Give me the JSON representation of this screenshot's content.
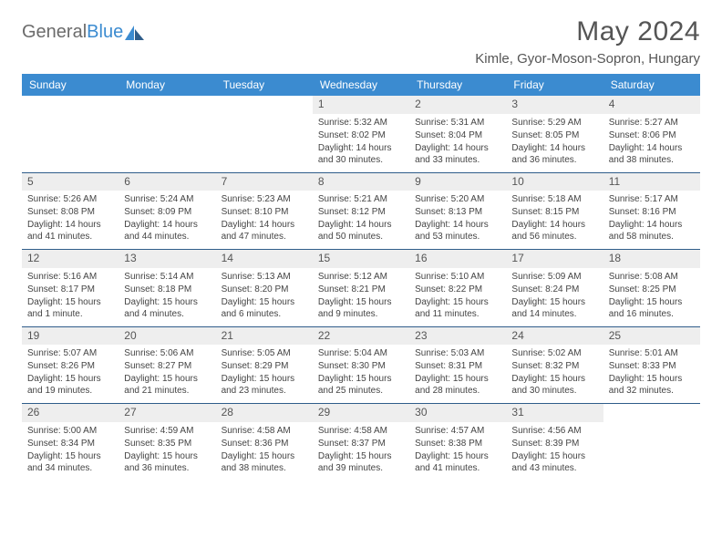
{
  "brand": {
    "part1": "General",
    "part2": "Blue"
  },
  "title": "May 2024",
  "location": "Kimle, Gyor-Moson-Sopron, Hungary",
  "style": {
    "header_bg": "#3b8bd0",
    "header_text": "#ffffff",
    "daynum_bg": "#eeeeee",
    "week_border": "#2f5d8a",
    "text_color": "#444444",
    "title_color": "#555555"
  },
  "daysOfWeek": [
    "Sunday",
    "Monday",
    "Tuesday",
    "Wednesday",
    "Thursday",
    "Friday",
    "Saturday"
  ],
  "weeks": [
    [
      {
        "n": "",
        "sr": "",
        "ss": "",
        "dl": ""
      },
      {
        "n": "",
        "sr": "",
        "ss": "",
        "dl": ""
      },
      {
        "n": "",
        "sr": "",
        "ss": "",
        "dl": ""
      },
      {
        "n": "1",
        "sr": "5:32 AM",
        "ss": "8:02 PM",
        "dl": "14 hours and 30 minutes."
      },
      {
        "n": "2",
        "sr": "5:31 AM",
        "ss": "8:04 PM",
        "dl": "14 hours and 33 minutes."
      },
      {
        "n": "3",
        "sr": "5:29 AM",
        "ss": "8:05 PM",
        "dl": "14 hours and 36 minutes."
      },
      {
        "n": "4",
        "sr": "5:27 AM",
        "ss": "8:06 PM",
        "dl": "14 hours and 38 minutes."
      }
    ],
    [
      {
        "n": "5",
        "sr": "5:26 AM",
        "ss": "8:08 PM",
        "dl": "14 hours and 41 minutes."
      },
      {
        "n": "6",
        "sr": "5:24 AM",
        "ss": "8:09 PM",
        "dl": "14 hours and 44 minutes."
      },
      {
        "n": "7",
        "sr": "5:23 AM",
        "ss": "8:10 PM",
        "dl": "14 hours and 47 minutes."
      },
      {
        "n": "8",
        "sr": "5:21 AM",
        "ss": "8:12 PM",
        "dl": "14 hours and 50 minutes."
      },
      {
        "n": "9",
        "sr": "5:20 AM",
        "ss": "8:13 PM",
        "dl": "14 hours and 53 minutes."
      },
      {
        "n": "10",
        "sr": "5:18 AM",
        "ss": "8:15 PM",
        "dl": "14 hours and 56 minutes."
      },
      {
        "n": "11",
        "sr": "5:17 AM",
        "ss": "8:16 PM",
        "dl": "14 hours and 58 minutes."
      }
    ],
    [
      {
        "n": "12",
        "sr": "5:16 AM",
        "ss": "8:17 PM",
        "dl": "15 hours and 1 minute."
      },
      {
        "n": "13",
        "sr": "5:14 AM",
        "ss": "8:18 PM",
        "dl": "15 hours and 4 minutes."
      },
      {
        "n": "14",
        "sr": "5:13 AM",
        "ss": "8:20 PM",
        "dl": "15 hours and 6 minutes."
      },
      {
        "n": "15",
        "sr": "5:12 AM",
        "ss": "8:21 PM",
        "dl": "15 hours and 9 minutes."
      },
      {
        "n": "16",
        "sr": "5:10 AM",
        "ss": "8:22 PM",
        "dl": "15 hours and 11 minutes."
      },
      {
        "n": "17",
        "sr": "5:09 AM",
        "ss": "8:24 PM",
        "dl": "15 hours and 14 minutes."
      },
      {
        "n": "18",
        "sr": "5:08 AM",
        "ss": "8:25 PM",
        "dl": "15 hours and 16 minutes."
      }
    ],
    [
      {
        "n": "19",
        "sr": "5:07 AM",
        "ss": "8:26 PM",
        "dl": "15 hours and 19 minutes."
      },
      {
        "n": "20",
        "sr": "5:06 AM",
        "ss": "8:27 PM",
        "dl": "15 hours and 21 minutes."
      },
      {
        "n": "21",
        "sr": "5:05 AM",
        "ss": "8:29 PM",
        "dl": "15 hours and 23 minutes."
      },
      {
        "n": "22",
        "sr": "5:04 AM",
        "ss": "8:30 PM",
        "dl": "15 hours and 25 minutes."
      },
      {
        "n": "23",
        "sr": "5:03 AM",
        "ss": "8:31 PM",
        "dl": "15 hours and 28 minutes."
      },
      {
        "n": "24",
        "sr": "5:02 AM",
        "ss": "8:32 PM",
        "dl": "15 hours and 30 minutes."
      },
      {
        "n": "25",
        "sr": "5:01 AM",
        "ss": "8:33 PM",
        "dl": "15 hours and 32 minutes."
      }
    ],
    [
      {
        "n": "26",
        "sr": "5:00 AM",
        "ss": "8:34 PM",
        "dl": "15 hours and 34 minutes."
      },
      {
        "n": "27",
        "sr": "4:59 AM",
        "ss": "8:35 PM",
        "dl": "15 hours and 36 minutes."
      },
      {
        "n": "28",
        "sr": "4:58 AM",
        "ss": "8:36 PM",
        "dl": "15 hours and 38 minutes."
      },
      {
        "n": "29",
        "sr": "4:58 AM",
        "ss": "8:37 PM",
        "dl": "15 hours and 39 minutes."
      },
      {
        "n": "30",
        "sr": "4:57 AM",
        "ss": "8:38 PM",
        "dl": "15 hours and 41 minutes."
      },
      {
        "n": "31",
        "sr": "4:56 AM",
        "ss": "8:39 PM",
        "dl": "15 hours and 43 minutes."
      },
      {
        "n": "",
        "sr": "",
        "ss": "",
        "dl": ""
      }
    ]
  ],
  "labels": {
    "sunrise": "Sunrise:",
    "sunset": "Sunset:",
    "daylight": "Daylight:"
  }
}
